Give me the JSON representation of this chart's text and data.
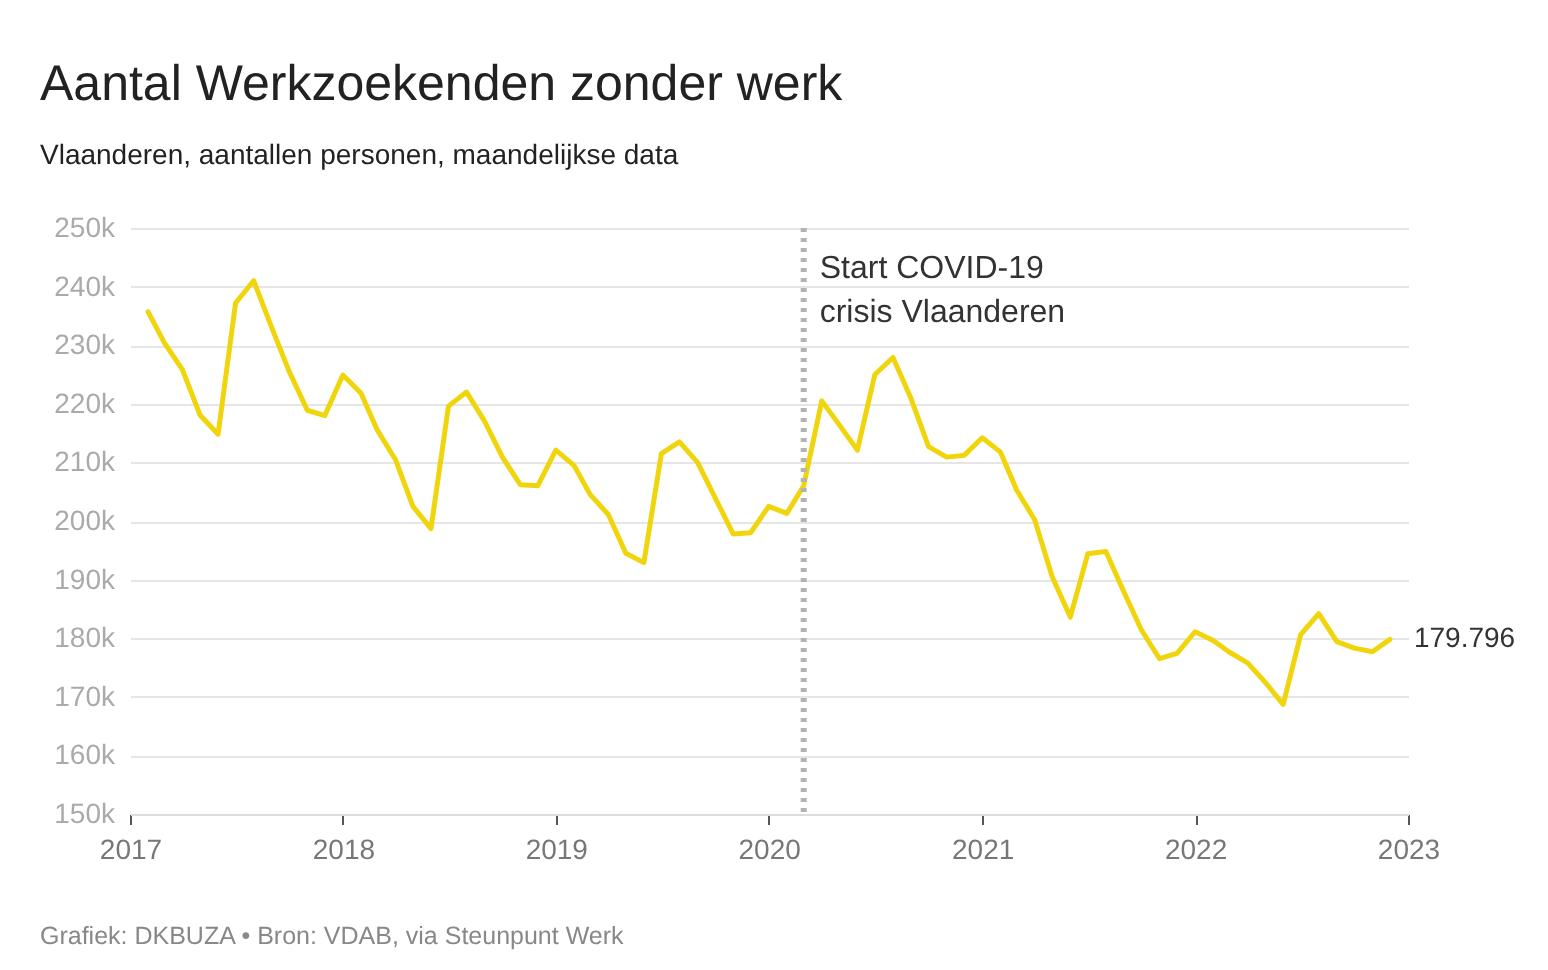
{
  "chart_data": {
    "type": "line",
    "title": "Aantal Werkzoekenden zonder werk",
    "subtitle": "Vlaanderen, aantallen personen, maandelijkse data",
    "annotations": [
      "Grafiek: DKBUZA • Bron: VDAB, via Steunpunt Werk"
    ],
    "x": [
      "2017-02",
      "2017-03",
      "2017-04",
      "2017-05",
      "2017-06",
      "2017-07",
      "2017-08",
      "2017-09",
      "2017-10",
      "2017-11",
      "2017-12",
      "2018-01",
      "2018-02",
      "2018-03",
      "2018-04",
      "2018-05",
      "2018-06",
      "2018-07",
      "2018-08",
      "2018-09",
      "2018-10",
      "2018-11",
      "2018-12",
      "2019-01",
      "2019-02",
      "2019-03",
      "2019-04",
      "2019-05",
      "2019-06",
      "2019-07",
      "2019-08",
      "2019-09",
      "2019-10",
      "2019-11",
      "2019-12",
      "2020-01",
      "2020-02",
      "2020-03",
      "2020-04",
      "2020-05",
      "2020-06",
      "2020-07",
      "2020-08",
      "2020-09",
      "2020-10",
      "2020-11",
      "2020-12",
      "2021-01",
      "2021-02",
      "2021-03",
      "2021-04",
      "2021-05",
      "2021-06",
      "2021-07",
      "2021-08",
      "2021-09",
      "2021-10",
      "2021-11",
      "2021-12",
      "2022-01",
      "2022-02",
      "2022-03",
      "2022-04",
      "2022-05",
      "2022-06",
      "2022-07",
      "2022-08",
      "2022-09",
      "2022-10",
      "2022-11",
      "2022-12"
    ],
    "series": [
      {
        "color": "#f0d50c",
        "values": [
          235700,
          230400,
          225800,
          218100,
          214800,
          237200,
          241000,
          233000,
          225500,
          218900,
          218000,
          224900,
          221800,
          215500,
          210500,
          202500,
          198700,
          219600,
          222000,
          217000,
          211000,
          206200,
          206000,
          212100,
          209500,
          204500,
          201100,
          194500,
          192900,
          211500,
          213500,
          210000,
          204000,
          197800,
          198000,
          202500,
          201300,
          206000,
          220500,
          216400,
          212100,
          225000,
          227900,
          220900,
          212700,
          210900,
          211200,
          214200,
          211800,
          205300,
          200200,
          190500,
          183600,
          194400,
          194800,
          187900,
          181400,
          176500,
          177400,
          181100,
          179600,
          177600,
          175800,
          172500,
          168700,
          180600,
          184200,
          179400,
          178300,
          177700,
          179796
        ],
        "value_labels": [
          null,
          null,
          null,
          null,
          null,
          null,
          null,
          null,
          null,
          null,
          null,
          null,
          null,
          null,
          null,
          null,
          null,
          null,
          null,
          null,
          null,
          null,
          null,
          null,
          null,
          null,
          null,
          null,
          null,
          null,
          null,
          null,
          null,
          null,
          null,
          null,
          null,
          null,
          null,
          null,
          null,
          null,
          null,
          null,
          null,
          null,
          null,
          null,
          null,
          null,
          null,
          null,
          null,
          null,
          null,
          null,
          null,
          null,
          null,
          null,
          null,
          null,
          null,
          null,
          null,
          null,
          null,
          null,
          null,
          null,
          "179.796"
        ]
      }
    ],
    "xlim": [
      "2017-01",
      "2023-01"
    ],
    "xticks": [
      {
        "value": "2017",
        "label": "2017"
      },
      {
        "value": "2018",
        "label": "2018"
      },
      {
        "value": "2019",
        "label": "2019"
      },
      {
        "value": "2020",
        "label": "2020"
      },
      {
        "value": "2021",
        "label": "2021"
      },
      {
        "value": "2022",
        "label": "2022"
      },
      {
        "value": "2023",
        "label": "2023"
      }
    ],
    "ylim": [
      150000,
      250000
    ],
    "yticks": [
      {
        "value": 150000,
        "label": "150k"
      },
      {
        "value": 160000,
        "label": "160k"
      },
      {
        "value": 170000,
        "label": "170k"
      },
      {
        "value": 180000,
        "label": "180k"
      },
      {
        "value": 190000,
        "label": "190k"
      },
      {
        "value": 200000,
        "label": "200k"
      },
      {
        "value": 210000,
        "label": "210k"
      },
      {
        "value": 220000,
        "label": "220k"
      },
      {
        "value": 230000,
        "label": "230k"
      },
      {
        "value": 240000,
        "label": "240k"
      },
      {
        "value": 250000,
        "label": "250k"
      }
    ],
    "ref_lines": [
      {
        "axis": "x",
        "value": "2020-03",
        "label": "Start COVID-19\ncrisis Vlaanderen",
        "color": "#b3b3b3",
        "line_style": "dotted"
      }
    ],
    "grid": "y",
    "marker": "none",
    "line_style": "solid"
  }
}
